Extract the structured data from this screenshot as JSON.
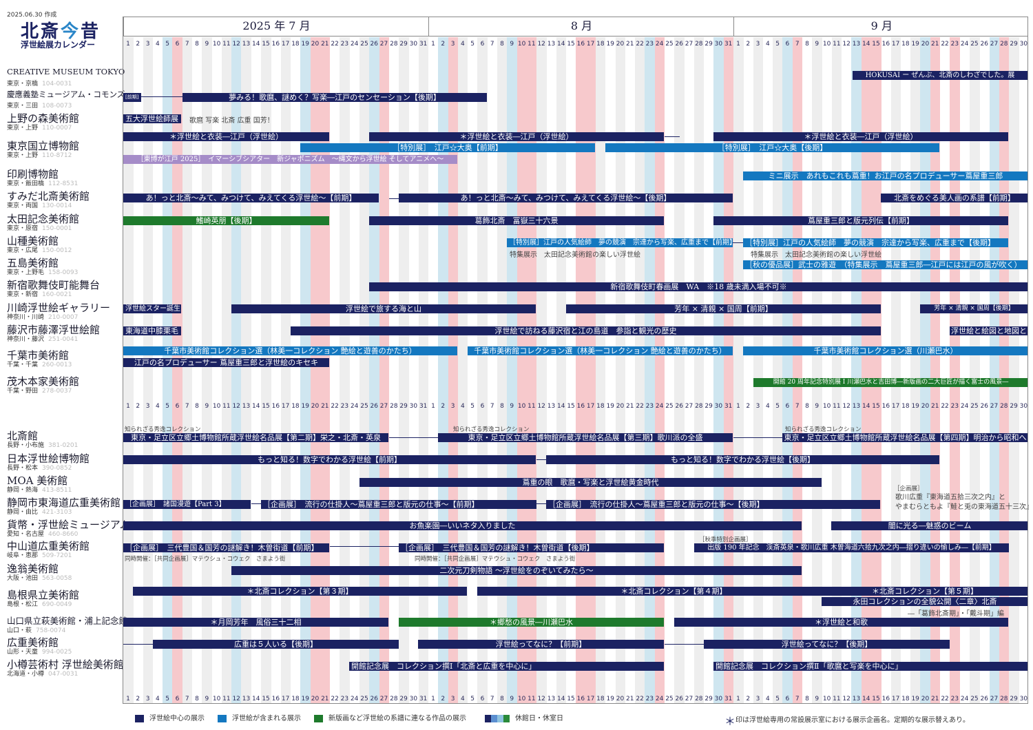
{
  "header": {
    "date_created": "2025.06.30 作成",
    "title_a": "北斎",
    "title_b": "今",
    "title_c": "昔",
    "subtitle": "浮世絵展カレンダー"
  },
  "months": [
    {
      "label": "2025 年 7 月",
      "days": 31
    },
    {
      "label": "8 月",
      "days": 31
    },
    {
      "label": "9 月",
      "days": 30
    }
  ],
  "colors": {
    "navy": "#1b2262",
    "blue": "#1478c0",
    "green": "#1e7a2c",
    "pink_closed": "#f7c9cc",
    "lightblue_closed": "#cfe6f0",
    "grey_stripe": "#eeeeee"
  },
  "legend": [
    {
      "label": "浮世絵中心の展示",
      "color": "#1b2262"
    },
    {
      "label": "浮世絵が含まれる展示",
      "color": "#1478c0"
    },
    {
      "label": "新版画など浮世絵の系譜に連なる作品の展示",
      "color": "#1e7a2c"
    },
    {
      "label": "休館日・休室日",
      "color": "#5b7fb0"
    }
  ],
  "note": "印は浮世絵専用の常設展示室における展示企画名。定期的な展示替えあり。",
  "museums": [
    {
      "name": "CREATIVE MUSEUM TOKYO",
      "loc": "東京・京橋",
      "zip": "104-0031"
    },
    {
      "name": "慶應義塾ミュージアム・コモンズ",
      "loc": "東京・三田",
      "zip": "108-0073"
    },
    {
      "name": "上野の森美術館",
      "loc": "東京・上野",
      "zip": "110-0007"
    },
    {
      "name": "東京国立博物館",
      "loc": "東京・上野",
      "zip": "110-8712"
    },
    {
      "name": "印刷博物館",
      "loc": "東京・飯田橋",
      "zip": "112-8531"
    },
    {
      "name": "すみだ北斎美術館",
      "loc": "東京・両国",
      "zip": "130-0014"
    },
    {
      "name": "太田記念美術館",
      "loc": "東京・原宿",
      "zip": "150-0001"
    },
    {
      "name": "山種美術館",
      "loc": "東京・広尾",
      "zip": "150-0012"
    },
    {
      "name": "五島美術館",
      "loc": "東京・上野毛",
      "zip": "158-0093"
    },
    {
      "name": "新宿歌舞伎町能舞台",
      "loc": "東京・新宿",
      "zip": "160-0021"
    },
    {
      "name": "川崎浮世絵ギャラリー",
      "loc": "神奈川・川崎",
      "zip": "210-0007"
    },
    {
      "name": "藤沢市藤澤浮世絵館",
      "loc": "神奈川・藤沢",
      "zip": "251-0041"
    },
    {
      "name": "千葉市美術館",
      "loc": "千葉・千葉",
      "zip": "260-0013"
    },
    {
      "name": "茂木本家美術館",
      "loc": "千葉・野田",
      "zip": "278-0037"
    },
    {
      "name": "北斎館",
      "loc": "長野・小布施",
      "zip": "381-0201"
    },
    {
      "name": "日本浮世絵博物館",
      "loc": "長野・松本",
      "zip": "390-0852"
    },
    {
      "name": "MOA 美術館",
      "loc": "静岡・熱海",
      "zip": "413-8511"
    },
    {
      "name": "静岡市東海道広重美術館",
      "loc": "静岡・由比",
      "zip": "421-3103"
    },
    {
      "name": "貨幣・浮世絵ミュージアム",
      "loc": "愛知・名古屋",
      "zip": "460-8660"
    },
    {
      "name": "中山道広重美術館",
      "loc": "岐阜・恵那",
      "zip": "509-7201"
    },
    {
      "name": "逸翁美術館",
      "loc": "大阪・池田",
      "zip": "563-0058"
    },
    {
      "name": "島根県立美術館",
      "loc": "島根・松江",
      "zip": "690-0049"
    },
    {
      "name": "山口県立萩美術館・浦上記念館",
      "loc": "山口・萩",
      "zip": "758-0074"
    },
    {
      "name": "広重美術館",
      "loc": "山形・天童",
      "zip": "994-0025"
    },
    {
      "name": "小樽芸術村 浮世絵美術館",
      "loc": "北海道・小樽",
      "zip": "047-0031"
    }
  ],
  "events": [
    {
      "t": "HOKUSAI ー ぜんぶ、北斎のしわざでした。展",
      "c": "c1"
    },
    {
      "t": "[前期]",
      "c": "c1"
    },
    {
      "t": "夢みる！歌麿、謎めく？写楽―江戸のセンセーション【後期】",
      "c": "c1"
    },
    {
      "t": "五大浮世絵師展",
      "c": "c1"
    },
    {
      "t": "歌麿 写楽 北斎 広重 国芳！",
      "c": "plain"
    },
    {
      "t": "＊浮世絵と衣装―江戸（浮世絵）",
      "c": "c1"
    },
    {
      "t": "＊浮世絵と衣装―江戸（浮世絵）",
      "c": "c1"
    },
    {
      "t": "＊浮世絵と衣装―江戸（浮世絵）",
      "c": "c1"
    },
    {
      "t": "［特別展］　江戸☆大奥【前期】",
      "c": "c2"
    },
    {
      "t": "［特別展］　江戸☆大奥【後期】",
      "c": "c2"
    },
    {
      "t": "［東博が江戸 2025］　イマーシブシアター　新ジャポニズム　～縄文から浮世絵 そしてアニメへ～",
      "c": "c4"
    },
    {
      "t": "ミニ展示　あれもこれも蔦重！お江戸の名プロデューサー蔦屋重三郎",
      "c": "c2"
    },
    {
      "t": "あ！っと北斎～みて、みつけて、みえてくる浮世絵～【前期】",
      "c": "c1"
    },
    {
      "t": "あ！っと北斎～みて、みつけて、みえてくる浮世絵～【後期】",
      "c": "c1"
    },
    {
      "t": "北斎をめぐる美人画の系譜【前期】",
      "c": "c1"
    },
    {
      "t": "鰭崎英朋【後期】",
      "c": "c3"
    },
    {
      "t": "葛飾北斎　冨嶽三十六景",
      "c": "c1"
    },
    {
      "t": "蔦屋重三郎と版元列伝【前期】",
      "c": "c1"
    },
    {
      "t": "［特別展］江戸の人気絵師　夢の競演　宗達から写楽、広重まで【前期】",
      "c": "c2"
    },
    {
      "t": "［特別展］江戸の人気絵師　夢の競演　宗達から写楽、広重まで【後期】",
      "c": "c2"
    },
    {
      "t": "特集展示　太田記念美術館の楽しい浮世絵",
      "c": "plain"
    },
    {
      "t": "特集展示　太田記念美術館の楽しい浮世絵",
      "c": "plain"
    },
    {
      "t": "［秋の優品展］武士の雅遊　（特集展示　蔦屋重三郎―江戸には江戸の風が吹く）",
      "c": "c2"
    },
    {
      "t": "新宿歌舞伎町春画展　WA　※18 歳未満入場不可※",
      "c": "c1"
    },
    {
      "t": "浮世絵スター誕生",
      "c": "c1"
    },
    {
      "t": "浮世絵で旅する海と山",
      "c": "c1"
    },
    {
      "t": "芳年 × 清親 × 国周【前期】",
      "c": "c1"
    },
    {
      "t": "芳年 × 清親 × 国周【後期】",
      "c": "c1"
    },
    {
      "t": "東海道中膝栗毛",
      "c": "c1"
    },
    {
      "t": "浮世絵で訪ねる藤沢宿と江の島道　参詣と観光の歴史",
      "c": "c1"
    },
    {
      "t": "浮世絵と絵図と地図と",
      "c": "c1"
    },
    {
      "t": "千葉市美術館コレクション選（林美一コレクション 艶絵と遊善のかたち）",
      "c": "c2"
    },
    {
      "t": "千葉市美術館コレクション選（林美一コレクション 艶絵と遊善のかたち）",
      "c": "c2"
    },
    {
      "t": "千葉市美術館コレクション選（川瀬巴水）",
      "c": "c2"
    },
    {
      "t": "江戸の名プロデューサー 蔦屋重三郎と浮世絵のキセキ",
      "c": "c1"
    },
    {
      "t": "開館 20 周年記念特別展 Ⅰ 川瀬巴水と吉田博―新版画の二大巨匠が描く富士の風景―",
      "c": "c3"
    },
    {
      "t": "知られざる秀逸コレクション",
      "c": "plain"
    },
    {
      "t": "知られざる秀逸コレクション",
      "c": "plain"
    },
    {
      "t": "知られざる秀逸コレクション",
      "c": "plain"
    },
    {
      "t": "東京・足立区立郷土博物館所蔵浮世絵名品展【第二期】栄之・北斎・英泉",
      "c": "c1"
    },
    {
      "t": "東京・足立区立郷土博物館所蔵浮世絵名品展【第三期】歌川派の全盛",
      "c": "c1"
    },
    {
      "t": "東京・足立区立郷土博物館所蔵浮世絵名品展【第四期】明治から昭和へ",
      "c": "c1"
    },
    {
      "t": "もっと知る！数字でわかる浮世絵【前期】",
      "c": "c1"
    },
    {
      "t": "もっと知る！数字でわかる浮世絵【後期】",
      "c": "c1"
    },
    {
      "t": "蔦重の眼　歌麿・写楽と浮世絵黄金時代",
      "c": "c1"
    },
    {
      "t": "［企画展］　諸国漫遊【Part 3】",
      "c": "c1"
    },
    {
      "t": "［企画展］　流行の仕掛人～蔦屋重三郎と版元の仕事～【前期】",
      "c": "c1"
    },
    {
      "t": "［企画展］　流行の仕掛人～蔦屋重三郎と版元の仕事～【後期】",
      "c": "c1"
    },
    {
      "t": "［企画展］",
      "c": "plain"
    },
    {
      "t": "歌川広重『東海道五拾三次之内』と",
      "c": "plain"
    },
    {
      "t": "やまむらともよ『鮭と兎の東海道五十三次』",
      "c": "plain"
    },
    {
      "t": "お魚楽園―いいネタ入りました",
      "c": "c1"
    },
    {
      "t": "闇に光る―魅惑のビーム",
      "c": "c1"
    },
    {
      "t": "［企画展］　三代豊国＆国芳の謎解き！木曽街道【前期】",
      "c": "c1"
    },
    {
      "t": "［企画展］　三代豊国＆国芳の謎解き！木曽街道【後期】",
      "c": "c1"
    },
    {
      "t": "同時開催：［共同企画展］マテウシュ・コウェク　さまよう街",
      "c": "plain"
    },
    {
      "t": "同時開催：［共同企画展］マテウシュ・コウェク　さまよう街",
      "c": "plain"
    },
    {
      "t": "［秋季特別企画展］",
      "c": "plain"
    },
    {
      "t": "出版 190 年記念　渓斎英泉・歌川広重 木曽海道六拾九次之内―摺り違いの愉しみ―【前期】",
      "c": "c1"
    },
    {
      "t": "二次元刀剣物語 ～浮世絵をのぞいてみたら～",
      "c": "c1"
    },
    {
      "t": "＊北斎コレクション【第３期】",
      "c": "c1"
    },
    {
      "t": "＊北斎コレクション【第４期】",
      "c": "c1"
    },
    {
      "t": "＊北斎コレクション【第５期】",
      "c": "c1"
    },
    {
      "t": "永田コレクションの全貌公開〈二章〉北斎",
      "c": "c1"
    },
    {
      "t": "―「葛飾北斎期」・「戴斗期」編",
      "c": "plain"
    },
    {
      "t": "＊月岡芳年　風俗三十二相",
      "c": "c1"
    },
    {
      "t": "＊郷愁の風景―川瀬巴水",
      "c": "c3"
    },
    {
      "t": "＊浮世絵と和歌",
      "c": "c1"
    },
    {
      "t": "広重は５人いる【後期】",
      "c": "c1"
    },
    {
      "t": "浮世絵ってなに？【前期】",
      "c": "c1"
    },
    {
      "t": "浮世絵ってなに？【後期】",
      "c": "c1"
    },
    {
      "t": "開館記念展　コレクション撰Ⅰ「北斎と広重を中心に」",
      "c": "c1"
    },
    {
      "t": "開館記念展　コレクション撰Ⅱ「歌麿と写楽を中心に」",
      "c": "c1"
    }
  ]
}
